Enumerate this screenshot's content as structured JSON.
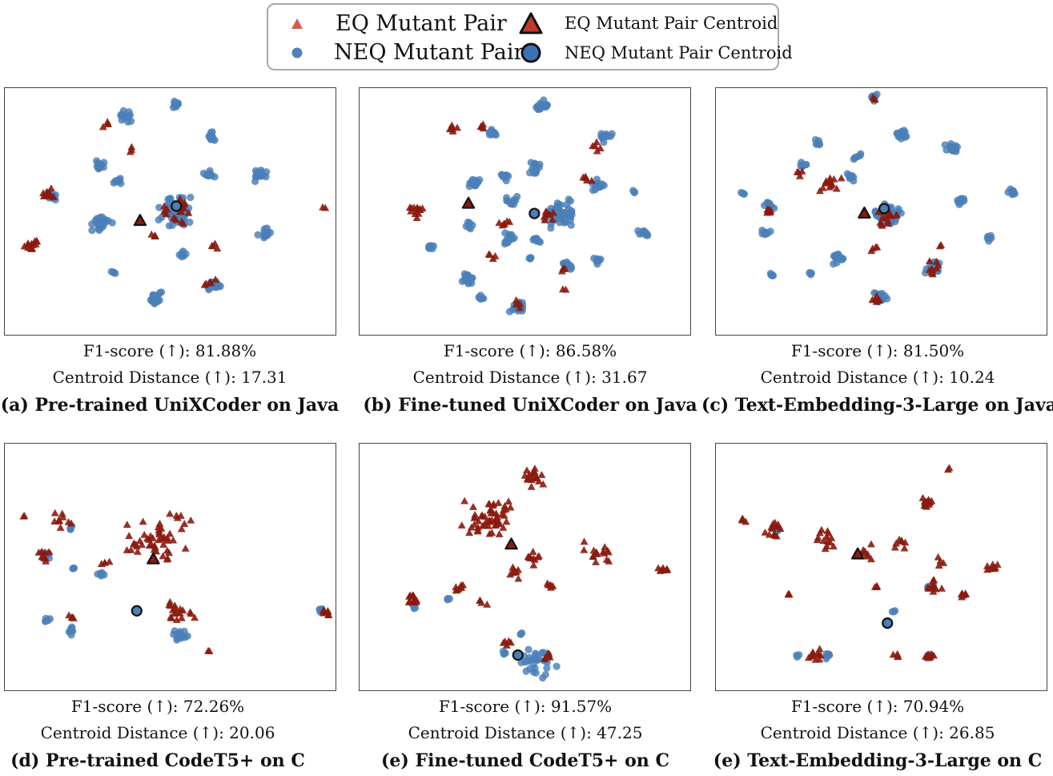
{
  "legend": {
    "eq": "EQ Mutant Pair",
    "neq": "NEQ Mutant Pair",
    "eq_centroid": "EQ Mutant Pair Centroid",
    "neq_centroid": "NEQ Mutant Pair Centroid"
  },
  "colors": {
    "eq": "#8b1a0e",
    "eq_legend": "#d55a50",
    "neq": "#4a7fb8",
    "neq_legend": "#4f82b8",
    "centroid_outline": "#111111"
  },
  "chart_data": [
    {
      "type": "scatter",
      "title": "(a) Pre-trained UniXCoder on Java",
      "f1_line": "F1-score (↑): 81.88%",
      "distance_line": "Centroid Distance (↑): 17.31",
      "axes": "off",
      "series": [
        {
          "name": "EQ Mutant Pair",
          "clusters": [
            [
              0.08,
              0.64,
              0.03,
              14
            ],
            [
              0.13,
              0.43,
              0.03,
              10
            ],
            [
              0.52,
              0.5,
              0.06,
              22
            ],
            [
              0.64,
              0.64,
              0.02,
              4
            ],
            [
              0.31,
              0.15,
              0.02,
              4
            ],
            [
              0.38,
              0.25,
              0.02,
              3
            ],
            [
              0.63,
              0.79,
              0.03,
              5
            ],
            [
              0.97,
              0.48,
              0.01,
              2
            ],
            [
              0.45,
              0.6,
              0.02,
              4
            ]
          ]
        },
        {
          "name": "NEQ Mutant Pair",
          "clusters": [
            [
              0.52,
              0.5,
              0.07,
              70
            ],
            [
              0.29,
              0.55,
              0.04,
              25
            ],
            [
              0.52,
              0.06,
              0.02,
              12
            ],
            [
              0.36,
              0.12,
              0.03,
              14
            ],
            [
              0.63,
              0.2,
              0.02,
              12
            ],
            [
              0.77,
              0.36,
              0.03,
              14
            ],
            [
              0.14,
              0.44,
              0.02,
              10
            ],
            [
              0.79,
              0.59,
              0.03,
              16
            ],
            [
              0.29,
              0.31,
              0.02,
              8
            ],
            [
              0.34,
              0.38,
              0.02,
              8
            ],
            [
              0.46,
              0.86,
              0.03,
              25
            ],
            [
              0.63,
              0.8,
              0.03,
              22
            ],
            [
              0.62,
              0.35,
              0.02,
              10
            ],
            [
              0.54,
              0.68,
              0.02,
              8
            ],
            [
              0.33,
              0.75,
              0.01,
              4
            ],
            [
              0.29,
              0.32,
              0.015,
              6
            ]
          ]
        }
      ],
      "centroids": {
        "eq": [
          0.41,
          0.54
        ],
        "neq": [
          0.52,
          0.48
        ]
      }
    },
    {
      "type": "scatter",
      "title": "(b) Fine-tuned UniXCoder on Java",
      "f1_line": "F1-score (↑): 86.58%",
      "distance_line": "Centroid Distance (↑): 31.67",
      "axes": "off",
      "series": [
        {
          "name": "EQ Mutant Pair",
          "clusters": [
            [
              0.18,
              0.49,
              0.04,
              14
            ],
            [
              0.28,
              0.17,
              0.02,
              6
            ],
            [
              0.37,
              0.16,
              0.02,
              5
            ],
            [
              0.44,
              0.55,
              0.03,
              6
            ],
            [
              0.58,
              0.52,
              0.03,
              8
            ],
            [
              0.69,
              0.37,
              0.02,
              5
            ],
            [
              0.72,
              0.24,
              0.02,
              5
            ],
            [
              0.48,
              0.88,
              0.02,
              4
            ],
            [
              0.61,
              0.74,
              0.02,
              4
            ],
            [
              0.4,
              0.68,
              0.02,
              4
            ],
            [
              0.62,
              0.82,
              0.01,
              2
            ]
          ]
        },
        {
          "name": "NEQ Mutant Pair",
          "clusters": [
            [
              0.61,
              0.51,
              0.06,
              55
            ],
            [
              0.55,
              0.07,
              0.03,
              18
            ],
            [
              0.4,
              0.18,
              0.02,
              10
            ],
            [
              0.44,
              0.36,
              0.02,
              10
            ],
            [
              0.53,
              0.32,
              0.03,
              14
            ],
            [
              0.74,
              0.2,
              0.03,
              14
            ],
            [
              0.72,
              0.39,
              0.03,
              14
            ],
            [
              0.35,
              0.39,
              0.03,
              14
            ],
            [
              0.46,
              0.46,
              0.03,
              12
            ],
            [
              0.45,
              0.61,
              0.03,
              14
            ],
            [
              0.54,
              0.62,
              0.02,
              10
            ],
            [
              0.33,
              0.56,
              0.02,
              8
            ],
            [
              0.52,
              0.69,
              0.01,
              4
            ],
            [
              0.22,
              0.65,
              0.02,
              6
            ],
            [
              0.33,
              0.77,
              0.03,
              18
            ],
            [
              0.48,
              0.89,
              0.03,
              16
            ],
            [
              0.63,
              0.72,
              0.02,
              10
            ],
            [
              0.86,
              0.59,
              0.02,
              10
            ],
            [
              0.72,
              0.7,
              0.02,
              8
            ],
            [
              0.37,
              0.85,
              0.02,
              6
            ],
            [
              0.83,
              0.42,
              0.01,
              3
            ]
          ]
        }
      ],
      "centroids": {
        "eq": [
          0.33,
          0.47
        ],
        "neq": [
          0.53,
          0.51
        ]
      }
    },
    {
      "type": "scatter",
      "title": "(c) Text-Embedding-3-Large on Java",
      "f1_line": "F1-score (↑): 81.50%",
      "distance_line": "Centroid Distance (↑): 10.24",
      "axes": "off",
      "series": [
        {
          "name": "EQ Mutant Pair",
          "clusters": [
            [
              0.35,
              0.39,
              0.05,
              14
            ],
            [
              0.52,
              0.53,
              0.05,
              18
            ],
            [
              0.16,
              0.5,
              0.02,
              8
            ],
            [
              0.26,
              0.35,
              0.02,
              4
            ],
            [
              0.48,
              0.65,
              0.02,
              4
            ],
            [
              0.48,
              0.86,
              0.02,
              6
            ],
            [
              0.66,
              0.73,
              0.03,
              10
            ],
            [
              0.68,
              0.64,
              0.01,
              2
            ],
            [
              0.48,
              0.04,
              0.01,
              3
            ]
          ]
        },
        {
          "name": "NEQ Mutant Pair",
          "clusters": [
            [
              0.52,
              0.52,
              0.05,
              60
            ],
            [
              0.48,
              0.04,
              0.02,
              10
            ],
            [
              0.56,
              0.19,
              0.03,
              14
            ],
            [
              0.72,
              0.24,
              0.03,
              14
            ],
            [
              0.74,
              0.46,
              0.02,
              12
            ],
            [
              0.9,
              0.42,
              0.02,
              10
            ],
            [
              0.16,
              0.48,
              0.02,
              10
            ],
            [
              0.15,
              0.59,
              0.02,
              10
            ],
            [
              0.26,
              0.31,
              0.02,
              8
            ],
            [
              0.31,
              0.22,
              0.02,
              6
            ],
            [
              0.43,
              0.28,
              0.02,
              6
            ],
            [
              0.37,
              0.69,
              0.03,
              18
            ],
            [
              0.66,
              0.73,
              0.03,
              14
            ],
            [
              0.83,
              0.61,
              0.02,
              6
            ],
            [
              0.5,
              0.85,
              0.03,
              18
            ],
            [
              0.17,
              0.76,
              0.01,
              4
            ],
            [
              0.41,
              0.36,
              0.02,
              8
            ],
            [
              0.29,
              0.75,
              0.01,
              3
            ],
            [
              0.08,
              0.43,
              0.01,
              4
            ]
          ]
        }
      ],
      "centroids": {
        "eq": [
          0.45,
          0.51
        ],
        "neq": [
          0.51,
          0.49
        ]
      }
    },
    {
      "type": "scatter",
      "title": "(d) Pre-trained CodeT5+ on C",
      "f1_line": "F1-score (↑): 72.26%",
      "distance_line": "Centroid Distance (↑): 20.06",
      "axes": "off",
      "series": [
        {
          "name": "EQ Mutant Pair",
          "clusters": [
            [
              0.47,
              0.38,
              0.13,
              45
            ],
            [
              0.17,
              0.31,
              0.04,
              10
            ],
            [
              0.12,
              0.46,
              0.03,
              8
            ],
            [
              0.53,
              0.7,
              0.06,
              18
            ],
            [
              0.39,
              0.43,
              0.03,
              6
            ],
            [
              0.3,
              0.49,
              0.02,
              4
            ],
            [
              0.97,
              0.69,
              0.02,
              8
            ],
            [
              0.62,
              0.85,
              0.01,
              2
            ],
            [
              0.2,
              0.71,
              0.02,
              4
            ],
            [
              0.06,
              0.3,
              0.01,
              2
            ]
          ]
        },
        {
          "name": "NEQ Mutant Pair",
          "clusters": [
            [
              0.53,
              0.78,
              0.03,
              16
            ],
            [
              0.29,
              0.53,
              0.02,
              6
            ],
            [
              0.13,
              0.46,
              0.02,
              6
            ],
            [
              0.2,
              0.76,
              0.02,
              8
            ],
            [
              0.13,
              0.72,
              0.02,
              5
            ],
            [
              0.96,
              0.68,
              0.02,
              6
            ],
            [
              0.2,
              0.34,
              0.01,
              4
            ],
            [
              0.21,
              0.5,
              0.01,
              3
            ]
          ]
        }
      ],
      "centroids": {
        "eq": [
          0.45,
          0.47
        ],
        "neq": [
          0.4,
          0.68
        ]
      }
    },
    {
      "type": "scatter",
      "title": "(e) Fine-tuned CodeT5+ on C",
      "f1_line": "F1-score (↑): 91.57%",
      "distance_line": "Centroid Distance (↑): 47.25",
      "axes": "off",
      "series": [
        {
          "name": "EQ Mutant Pair",
          "clusters": [
            [
              0.4,
              0.3,
              0.11,
              55
            ],
            [
              0.52,
              0.13,
              0.05,
              18
            ],
            [
              0.16,
              0.63,
              0.03,
              14
            ],
            [
              0.3,
              0.59,
              0.02,
              8
            ],
            [
              0.47,
              0.52,
              0.03,
              8
            ],
            [
              0.71,
              0.45,
              0.06,
              16
            ],
            [
              0.92,
              0.52,
              0.02,
              8
            ],
            [
              0.58,
              0.58,
              0.02,
              6
            ],
            [
              0.37,
              0.64,
              0.02,
              4
            ],
            [
              0.45,
              0.81,
              0.02,
              5
            ],
            [
              0.57,
              0.87,
              0.02,
              6
            ],
            [
              0.52,
              0.46,
              0.04,
              10
            ]
          ]
        },
        {
          "name": "NEQ Mutant Pair",
          "clusters": [
            [
              0.53,
              0.9,
              0.08,
              30
            ],
            [
              0.17,
              0.66,
              0.02,
              6
            ],
            [
              0.27,
              0.63,
              0.01,
              3
            ],
            [
              0.44,
              0.85,
              0.01,
              4
            ],
            [
              0.49,
              0.77,
              0.01,
              3
            ]
          ]
        }
      ],
      "centroids": {
        "eq": [
          0.46,
          0.41
        ],
        "neq": [
          0.48,
          0.86
        ]
      }
    },
    {
      "type": "scatter",
      "title": "(e) Text-Embedding-3-Large on C",
      "f1_line": "F1-score (↑): 70.94%",
      "distance_line": "Centroid Distance (↑): 26.85",
      "axes": "off",
      "series": [
        {
          "name": "EQ Mutant Pair",
          "clusters": [
            [
              0.64,
              0.24,
              0.02,
              14
            ],
            [
              0.18,
              0.35,
              0.04,
              14
            ],
            [
              0.34,
              0.39,
              0.05,
              14
            ],
            [
              0.45,
              0.45,
              0.05,
              10
            ],
            [
              0.56,
              0.41,
              0.03,
              8
            ],
            [
              0.68,
              0.48,
              0.02,
              4
            ],
            [
              0.66,
              0.58,
              0.03,
              12
            ],
            [
              0.75,
              0.62,
              0.02,
              6
            ],
            [
              0.84,
              0.5,
              0.03,
              8
            ],
            [
              0.22,
              0.61,
              0.01,
              3
            ],
            [
              0.49,
              0.58,
              0.01,
              4
            ],
            [
              0.65,
              0.86,
              0.02,
              8
            ],
            [
              0.55,
              0.86,
              0.02,
              4
            ],
            [
              0.3,
              0.86,
              0.03,
              12
            ],
            [
              0.08,
              0.31,
              0.02,
              4
            ],
            [
              0.71,
              0.1,
              0.01,
              2
            ]
          ]
        },
        {
          "name": "NEQ Mutant Pair",
          "clusters": [
            [
              0.65,
              0.58,
              0.02,
              8
            ],
            [
              0.64,
              0.24,
              0.01,
              4
            ],
            [
              0.34,
              0.86,
              0.02,
              6
            ],
            [
              0.65,
              0.86,
              0.01,
              4
            ],
            [
              0.54,
              0.68,
              0.01,
              3
            ],
            [
              0.19,
              0.35,
              0.01,
              3
            ],
            [
              0.25,
              0.86,
              0.01,
              3
            ]
          ]
        }
      ],
      "centroids": {
        "eq": [
          0.43,
          0.45
        ],
        "neq": [
          0.52,
          0.73
        ]
      }
    }
  ]
}
